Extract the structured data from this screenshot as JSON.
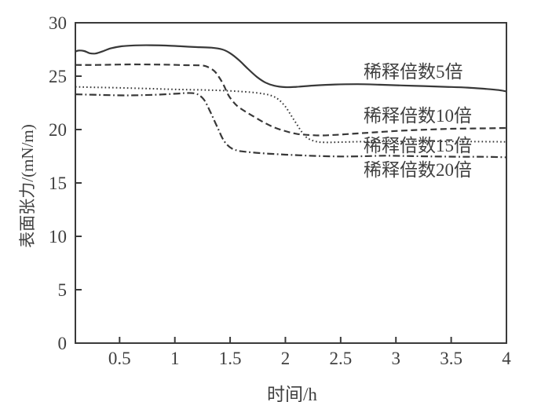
{
  "figure": {
    "background": "#ffffff",
    "axis_color": "#3a3a3a",
    "text_color": "#3f3f3f",
    "line_color": "#383838"
  },
  "chart_data": {
    "type": "line",
    "title": "",
    "xlabel": "时间/h",
    "ylabel": "表面张力/(mN/m)",
    "xlim": [
      0.1,
      4
    ],
    "ylim": [
      0,
      30
    ],
    "grid": false,
    "legend_position": "inline-annotations-right",
    "x_ticks": [
      0.5,
      1,
      1.5,
      2,
      2.5,
      3,
      3.5,
      4
    ],
    "x_tick_labels": [
      "0.5",
      "1",
      "1.5",
      "2",
      "2.5",
      "3",
      "3.5",
      "4"
    ],
    "y_ticks": [
      0,
      5,
      10,
      15,
      20,
      25,
      30
    ],
    "y_tick_labels": [
      "0",
      "5",
      "10",
      "15",
      "20",
      "25",
      "30"
    ],
    "series": [
      {
        "name": "稀释倍数5倍",
        "line_style": "solid",
        "color": "#383838",
        "points": [
          [
            0.1,
            27.3
          ],
          [
            0.13,
            27.4
          ],
          [
            0.18,
            27.35
          ],
          [
            0.23,
            27.15
          ],
          [
            0.28,
            27.12
          ],
          [
            0.34,
            27.3
          ],
          [
            0.42,
            27.6
          ],
          [
            0.52,
            27.8
          ],
          [
            0.64,
            27.88
          ],
          [
            0.78,
            27.9
          ],
          [
            0.92,
            27.87
          ],
          [
            1.05,
            27.8
          ],
          [
            1.2,
            27.72
          ],
          [
            1.33,
            27.67
          ],
          [
            1.43,
            27.5
          ],
          [
            1.5,
            27.15
          ],
          [
            1.58,
            26.5
          ],
          [
            1.66,
            25.7
          ],
          [
            1.74,
            24.95
          ],
          [
            1.82,
            24.4
          ],
          [
            1.9,
            24.1
          ],
          [
            2.0,
            23.97
          ],
          [
            2.1,
            24.0
          ],
          [
            2.25,
            24.12
          ],
          [
            2.45,
            24.22
          ],
          [
            2.65,
            24.25
          ],
          [
            2.85,
            24.2
          ],
          [
            3.05,
            24.13
          ],
          [
            3.25,
            24.07
          ],
          [
            3.45,
            24.0
          ],
          [
            3.65,
            23.93
          ],
          [
            3.82,
            23.8
          ],
          [
            3.93,
            23.7
          ],
          [
            4.0,
            23.57
          ]
        ]
      },
      {
        "name": "稀释倍数10倍",
        "line_style": "dashed",
        "color": "#383838",
        "points": [
          [
            0.1,
            26.05
          ],
          [
            0.3,
            26.05
          ],
          [
            0.6,
            26.1
          ],
          [
            0.9,
            26.08
          ],
          [
            1.1,
            26.03
          ],
          [
            1.25,
            26.0
          ],
          [
            1.31,
            25.8
          ],
          [
            1.36,
            25.45
          ],
          [
            1.4,
            24.9
          ],
          [
            1.44,
            24.2
          ],
          [
            1.48,
            23.3
          ],
          [
            1.52,
            22.7
          ],
          [
            1.56,
            22.25
          ],
          [
            1.62,
            21.8
          ],
          [
            1.7,
            21.3
          ],
          [
            1.8,
            20.7
          ],
          [
            1.9,
            20.2
          ],
          [
            2.0,
            19.85
          ],
          [
            2.1,
            19.6
          ],
          [
            2.2,
            19.5
          ],
          [
            2.32,
            19.45
          ],
          [
            2.45,
            19.5
          ],
          [
            2.6,
            19.6
          ],
          [
            2.75,
            19.7
          ],
          [
            2.9,
            19.8
          ],
          [
            3.1,
            19.92
          ],
          [
            3.3,
            20.0
          ],
          [
            3.5,
            20.07
          ],
          [
            3.7,
            20.1
          ],
          [
            3.85,
            20.12
          ],
          [
            4.0,
            20.15
          ]
        ]
      },
      {
        "name": "稀释倍数15倍",
        "line_style": "dotted",
        "color": "#383838",
        "points": [
          [
            0.1,
            24.0
          ],
          [
            0.3,
            23.95
          ],
          [
            0.55,
            23.9
          ],
          [
            0.8,
            23.82
          ],
          [
            1.05,
            23.75
          ],
          [
            1.3,
            23.7
          ],
          [
            1.5,
            23.62
          ],
          [
            1.68,
            23.5
          ],
          [
            1.8,
            23.35
          ],
          [
            1.88,
            23.15
          ],
          [
            1.94,
            22.8
          ],
          [
            2.0,
            22.15
          ],
          [
            2.05,
            21.35
          ],
          [
            2.1,
            20.55
          ],
          [
            2.15,
            19.75
          ],
          [
            2.2,
            19.2
          ],
          [
            2.27,
            18.9
          ],
          [
            2.35,
            18.8
          ],
          [
            2.5,
            18.82
          ],
          [
            2.7,
            18.87
          ],
          [
            3.0,
            18.9
          ],
          [
            3.3,
            18.9
          ],
          [
            3.6,
            18.88
          ],
          [
            4.0,
            18.85
          ]
        ]
      },
      {
        "name": "稀释倍数20倍",
        "line_style": "dash-dot",
        "color": "#383838",
        "points": [
          [
            0.1,
            23.3
          ],
          [
            0.3,
            23.25
          ],
          [
            0.55,
            23.2
          ],
          [
            0.8,
            23.25
          ],
          [
            1.0,
            23.35
          ],
          [
            1.1,
            23.42
          ],
          [
            1.18,
            23.38
          ],
          [
            1.23,
            23.15
          ],
          [
            1.27,
            22.7
          ],
          [
            1.31,
            21.9
          ],
          [
            1.35,
            21.0
          ],
          [
            1.39,
            20.1
          ],
          [
            1.43,
            19.2
          ],
          [
            1.47,
            18.6
          ],
          [
            1.52,
            18.2
          ],
          [
            1.58,
            18.0
          ],
          [
            1.66,
            17.9
          ],
          [
            1.76,
            17.8
          ],
          [
            1.88,
            17.72
          ],
          [
            2.0,
            17.65
          ],
          [
            2.15,
            17.58
          ],
          [
            2.3,
            17.52
          ],
          [
            2.5,
            17.48
          ],
          [
            2.7,
            17.5
          ],
          [
            2.9,
            17.55
          ],
          [
            3.1,
            17.52
          ],
          [
            3.35,
            17.48
          ],
          [
            3.6,
            17.45
          ],
          [
            3.8,
            17.45
          ],
          [
            4.0,
            17.4
          ]
        ]
      }
    ]
  }
}
